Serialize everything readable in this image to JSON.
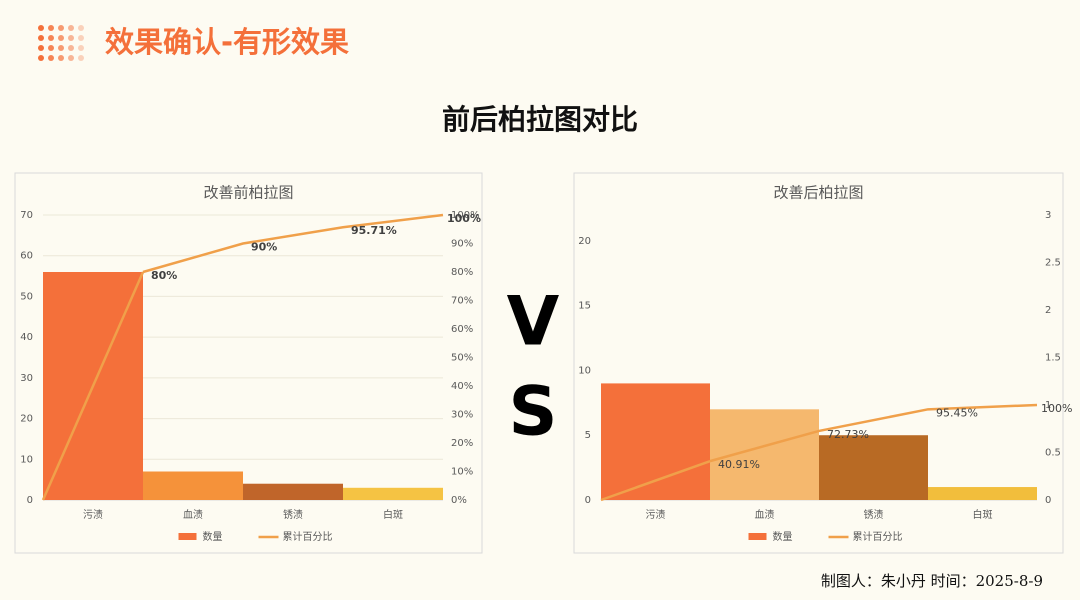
{
  "header": {
    "title": "效果确认-有形效果"
  },
  "subtitle": "前后柏拉图对比",
  "vs": [
    "V",
    "S"
  ],
  "footer": "制图人：朱小丹 时间：2025-8-9",
  "chart_data": [
    {
      "type": "pareto",
      "title": "改善前柏拉图",
      "categories": [
        "污渍",
        "血渍",
        "锈渍",
        "白斑"
      ],
      "series": [
        {
          "name": "数量",
          "color": "#f4703a",
          "colors": [
            "#f4703a",
            "#f5923a",
            "#c0652a",
            "#f5c343"
          ],
          "values": [
            56,
            7,
            4,
            3
          ]
        },
        {
          "name": "累计百分比",
          "type": "line",
          "axis": "y2",
          "color": "#f0a04a",
          "values": [
            80,
            90,
            95.71,
            100
          ],
          "value_labels": [
            "80%",
            "90%",
            "95.71%",
            "100%"
          ]
        }
      ],
      "ylim": [
        0,
        70
      ],
      "yticks": [
        0,
        10,
        20,
        30,
        40,
        50,
        60,
        70
      ],
      "y2lim": [
        0,
        100
      ],
      "y2ticks": [
        {
          "value": 0,
          "label": "0%"
        },
        {
          "value": 10,
          "label": "10%"
        },
        {
          "value": 20,
          "label": "20%"
        },
        {
          "value": 30,
          "label": "30%"
        },
        {
          "value": 40,
          "label": "40%"
        },
        {
          "value": 50,
          "label": "50%"
        },
        {
          "value": 60,
          "label": "60%"
        },
        {
          "value": 70,
          "label": "70%"
        },
        {
          "value": 80,
          "label": "80%"
        },
        {
          "value": 90,
          "label": "90%"
        },
        {
          "value": 100,
          "label": "100%"
        }
      ],
      "grid": true,
      "legend": "bottom"
    },
    {
      "type": "pareto",
      "title": "改善后柏拉图",
      "categories": [
        "污渍",
        "血渍",
        "锈渍",
        "白斑"
      ],
      "series": [
        {
          "name": "数量",
          "color": "#f4703a",
          "colors": [
            "#f4703a",
            "#f5b86e",
            "#b86a24",
            "#f2be3c"
          ],
          "values": [
            9,
            7,
            5,
            1
          ]
        },
        {
          "name": "累计百分比",
          "type": "line",
          "axis": "y2",
          "color": "#f0a04a",
          "values": [
            0.4091,
            0.7273,
            0.9545,
            1
          ],
          "value_labels": [
            "40.91%",
            "72.73%",
            "95.45%",
            "100%"
          ]
        }
      ],
      "ylim": [
        0,
        22
      ],
      "yticks": [
        0,
        5,
        10,
        15,
        20
      ],
      "y2lim": [
        0,
        3
      ],
      "y2ticks": [
        0,
        0.5,
        1,
        1.5,
        2,
        2.5,
        3
      ],
      "grid": false,
      "legend": "bottom"
    }
  ]
}
